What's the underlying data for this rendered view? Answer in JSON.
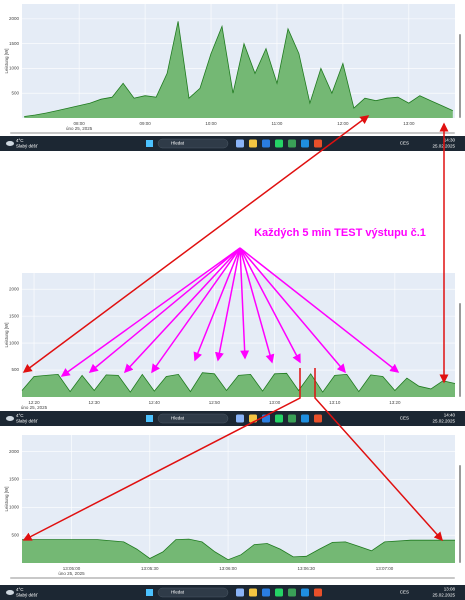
{
  "chart_data": [
    {
      "type": "area",
      "ylabel": "Leistung [W]",
      "color": "#1f7a1f",
      "fill": "#74b874",
      "grid": true,
      "x": [
        430,
        440,
        450,
        460,
        470,
        480,
        490,
        500,
        510,
        520,
        530,
        540,
        550,
        560,
        570,
        580,
        590,
        600,
        610,
        620,
        630,
        640,
        650,
        660,
        670,
        680,
        690,
        700,
        710,
        720,
        730,
        740,
        750,
        760,
        770,
        780,
        790,
        800,
        810,
        820
      ],
      "values": [
        30,
        60,
        100,
        150,
        200,
        250,
        300,
        380,
        420,
        700,
        400,
        450,
        420,
        900,
        1950,
        400,
        600,
        1300,
        1850,
        500,
        1500,
        900,
        1400,
        700,
        1800,
        1300,
        300,
        1000,
        500,
        1100,
        200,
        400,
        350,
        400,
        420,
        300,
        450,
        350,
        250,
        150
      ],
      "xlim": [
        428,
        822
      ],
      "ylim": [
        0,
        2300
      ],
      "yticks": [
        500,
        1000,
        1500,
        2000
      ],
      "xticks": [
        {
          "value": 480,
          "label": "08:00"
        },
        {
          "value": 540,
          "label": "09:00"
        },
        {
          "value": 600,
          "label": "10:00"
        },
        {
          "value": 660,
          "label": "11:00"
        },
        {
          "value": 720,
          "label": "12:00"
        },
        {
          "value": 780,
          "label": "13:00"
        }
      ],
      "x_sublabel": "úno 25, 2025"
    },
    {
      "type": "area",
      "ylabel": "Leistung [W]",
      "color": "#1f7a1f",
      "fill": "#74b874",
      "grid": true,
      "x": [
        738,
        740,
        742,
        744,
        746,
        748,
        750,
        752,
        754,
        756,
        758,
        760,
        762,
        764,
        766,
        768,
        770,
        772,
        774,
        776,
        778,
        780,
        782,
        784,
        786,
        788,
        790,
        792,
        794,
        796,
        798,
        800,
        802,
        804,
        806,
        808,
        810
      ],
      "values": [
        120,
        380,
        400,
        420,
        100,
        400,
        120,
        410,
        400,
        90,
        420,
        110,
        380,
        420,
        100,
        450,
        430,
        120,
        400,
        420,
        110,
        430,
        440,
        120,
        430,
        90,
        400,
        420,
        100,
        410,
        380,
        120,
        350,
        200,
        150,
        300,
        250
      ],
      "xlim": [
        738,
        810
      ],
      "ylim": [
        0,
        2300
      ],
      "yticks": [
        500,
        1000,
        1500,
        2000
      ],
      "xticks": [
        {
          "value": 740,
          "label": "12:20"
        },
        {
          "value": 750,
          "label": "12:30"
        },
        {
          "value": 760,
          "label": "12:40"
        },
        {
          "value": 770,
          "label": "12:50"
        },
        {
          "value": 780,
          "label": "13:00"
        },
        {
          "value": 790,
          "label": "13:10"
        },
        {
          "value": 800,
          "label": "13:20"
        }
      ],
      "x_sublabel": "úno 25, 2025"
    },
    {
      "type": "area",
      "ylabel": "Leistung [W]",
      "color": "#1f7a1f",
      "fill": "#74b874",
      "grid": true,
      "x": [
        41,
        50,
        60,
        70,
        80,
        85,
        90,
        95,
        100,
        105,
        110,
        115,
        120,
        125,
        130,
        135,
        140,
        145,
        150,
        155,
        160,
        165,
        170,
        175,
        180,
        190,
        200,
        207
      ],
      "values": [
        420,
        420,
        420,
        420,
        380,
        250,
        80,
        200,
        420,
        430,
        380,
        200,
        60,
        150,
        330,
        350,
        250,
        110,
        120,
        250,
        370,
        380,
        300,
        220,
        380,
        410,
        410,
        410
      ],
      "xlim": [
        41,
        207
      ],
      "ylim": [
        0,
        2300
      ],
      "yticks": [
        500,
        1000,
        1500,
        2000
      ],
      "xticks": [
        {
          "value": 60,
          "label": "13:05:00"
        },
        {
          "value": 90,
          "label": "13:05:30"
        },
        {
          "value": 120,
          "label": "13:06:00"
        },
        {
          "value": 150,
          "label": "13:06:30"
        },
        {
          "value": 180,
          "label": "13:07:00"
        }
      ],
      "x_sublabel": "úno 25, 2025"
    }
  ],
  "annotation": {
    "text": "Každých 5 min TEST výstupu č.1"
  },
  "taskbars": [
    {
      "temp": "4°C",
      "weather": "Slabý déšť",
      "search": "Hledat",
      "lang": "CES",
      "time": "14:30",
      "date": "25.02.2025"
    },
    {
      "temp": "4°C",
      "weather": "Slabý déšť",
      "search": "Hledat",
      "lang": "CES",
      "time": "14:40",
      "date": "25.02.2025"
    },
    {
      "temp": "4°C",
      "weather": "Slabý déšť",
      "search": "Hledat",
      "lang": "CES",
      "time": "13:08",
      "date": "25.02.2025"
    }
  ]
}
